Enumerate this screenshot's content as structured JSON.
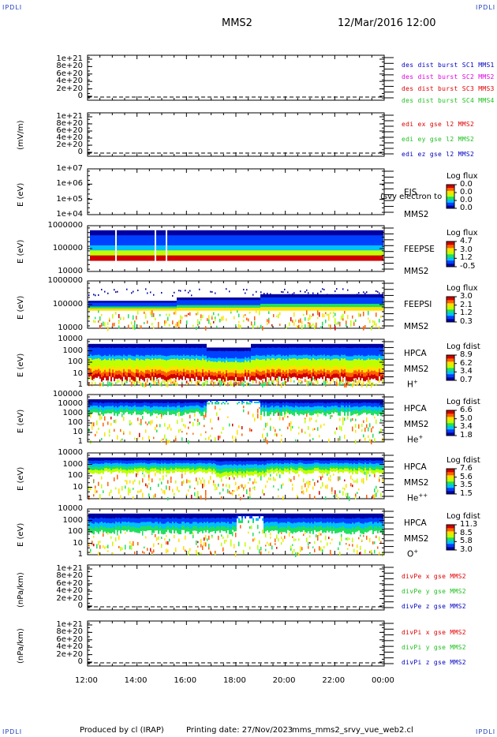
{
  "corners": {
    "tl": "IPDLI",
    "tr": "IPDLI",
    "bl": "IPDLI",
    "br": "IPDLI"
  },
  "header": {
    "spacecraft": "MMS2",
    "datetime": "12/Mar/2016 12:00"
  },
  "footer": {
    "produced": "Produced by cl (IRAP)",
    "printing": "Printing date: 27/Nov/2023",
    "file": "mms_mms2_srvy_vue_web2.cl"
  },
  "colors": {
    "red": "#e00000",
    "magenta": "#e000e0",
    "green": "#20c020",
    "blue": "#0000c0",
    "colorbar": [
      "#0000a0",
      "#0040ff",
      "#00c0ff",
      "#20e060",
      "#c0ff00",
      "#ffe000",
      "#ff6000",
      "#d00000"
    ]
  },
  "chart_data": [
    {
      "id": "p1",
      "type": "line",
      "ylabel": "",
      "yticks": [
        "1e+21",
        "8e+20",
        "6e+20",
        "4e+20",
        "2e+20",
        "0"
      ],
      "legend": [
        {
          "text": "des dist burst SC1 MMS1",
          "color": "blue"
        },
        {
          "text": "des dist burst SC2 MMS2",
          "color": "magenta"
        },
        {
          "text": "des dist burst SC3 MMS3",
          "color": "red"
        },
        {
          "text": "des dist burst SC4 MMS4",
          "color": "green"
        }
      ],
      "zero_dashed": true
    },
    {
      "id": "p2",
      "type": "line",
      "ylabel": "(mV/m)",
      "yticks": [
        "1e+21",
        "8e+20",
        "6e+20",
        "4e+20",
        "2e+20",
        "0"
      ],
      "legend": [
        {
          "text": "edi ex gse l2 MMS2",
          "color": "red"
        },
        {
          "text": "edi ey gse l2 MMS2",
          "color": "green"
        },
        {
          "text": "edi ez gse l2 MMS2",
          "color": "blue"
        }
      ],
      "zero_dashed": true
    },
    {
      "id": "p3",
      "type": "heatmap",
      "ylabel": "E (eV)",
      "yticks": [
        "1e+07",
        "1e+06",
        "1e+05",
        "1e+04"
      ],
      "side": [
        "EIS",
        "MMS2"
      ],
      "overlay": "(svy electron to",
      "cbar": {
        "title": "Log flux",
        "values": [
          "0.0",
          "0.0",
          "0.0",
          "0.0"
        ]
      },
      "density": 0
    },
    {
      "id": "p4",
      "type": "heatmap",
      "ylabel": "E (eV)",
      "yticks": [
        "1000000",
        "100000",
        "10000"
      ],
      "side": [
        "FEEPSE",
        "MMS2"
      ],
      "cbar": {
        "title": "Log flux",
        "values": [
          "4.7",
          "3.0",
          "1.2",
          "-0.5"
        ]
      },
      "density": 1
    },
    {
      "id": "p5",
      "type": "heatmap",
      "ylabel": "E (eV)",
      "yticks": [
        "1000000",
        "100000",
        "10000"
      ],
      "side": [
        "FEEPSI",
        "MMS2"
      ],
      "cbar": {
        "title": "Log flux",
        "values": [
          "3.0",
          "2.1",
          "1.2",
          "0.3"
        ]
      },
      "density": 2
    },
    {
      "id": "p6",
      "type": "heatmap",
      "ylabel": "E (eV)",
      "yticks": [
        "10000",
        "1000",
        "100",
        "10",
        "1"
      ],
      "side": [
        "HPCA",
        "MMS2"
      ],
      "species": "H",
      "sup": "+",
      "cbar": {
        "title": "Log fdist",
        "values": [
          "8.9",
          "6.2",
          "3.4",
          "0.7"
        ]
      },
      "density": 3
    },
    {
      "id": "p7",
      "type": "heatmap",
      "ylabel": "E (eV)",
      "yticks": [
        "100000",
        "10000",
        "1000",
        "100",
        "10",
        "1"
      ],
      "side": [
        "HPCA",
        "MMS2"
      ],
      "species": "He",
      "sup": "+",
      "cbar": {
        "title": "Log fdist",
        "values": [
          "6.6",
          "5.0",
          "3.4",
          "1.8"
        ]
      },
      "density": 4
    },
    {
      "id": "p8",
      "type": "heatmap",
      "ylabel": "E (eV)",
      "yticks": [
        "10000",
        "1000",
        "100",
        "10",
        "1"
      ],
      "side": [
        "HPCA",
        "MMS2"
      ],
      "species": "He",
      "sup": "++",
      "cbar": {
        "title": "Log fdist",
        "values": [
          "7.6",
          "5.6",
          "3.5",
          "1.5"
        ]
      },
      "density": 5
    },
    {
      "id": "p9",
      "type": "heatmap",
      "ylabel": "E (eV)",
      "yticks": [
        "10000",
        "1000",
        "100",
        "10",
        "1"
      ],
      "side": [
        "HPCA",
        "MMS2"
      ],
      "species": "O",
      "sup": "+",
      "cbar": {
        "title": "Log fdist",
        "values": [
          "11.3",
          "8.5",
          "5.8",
          "3.0"
        ]
      },
      "density": 6
    },
    {
      "id": "p10",
      "type": "line",
      "ylabel": "(nPa/km)",
      "yticks": [
        "1e+21",
        "8e+20",
        "6e+20",
        "4e+20",
        "2e+20",
        "0"
      ],
      "legend": [
        {
          "text": "divPe x gse MMS2",
          "color": "red"
        },
        {
          "text": "divPe y gse MMS2",
          "color": "green"
        },
        {
          "text": "divPe z gse MMS2",
          "color": "blue"
        }
      ],
      "zero_dashed": true
    },
    {
      "id": "p11",
      "type": "line",
      "ylabel": "(nPa/km)",
      "yticks": [
        "1e+21",
        "8e+20",
        "6e+20",
        "4e+20",
        "2e+20",
        "0"
      ],
      "legend": [
        {
          "text": "divPi x gse MMS2",
          "color": "red"
        },
        {
          "text": "divPi y gse MMS2",
          "color": "green"
        },
        {
          "text": "divPi z gse MMS2",
          "color": "blue"
        }
      ],
      "zero_dashed": true
    }
  ],
  "xaxis": {
    "ticks": [
      "12:00",
      "14:00",
      "16:00",
      "18:00",
      "20:00",
      "22:00",
      "00:00"
    ]
  }
}
